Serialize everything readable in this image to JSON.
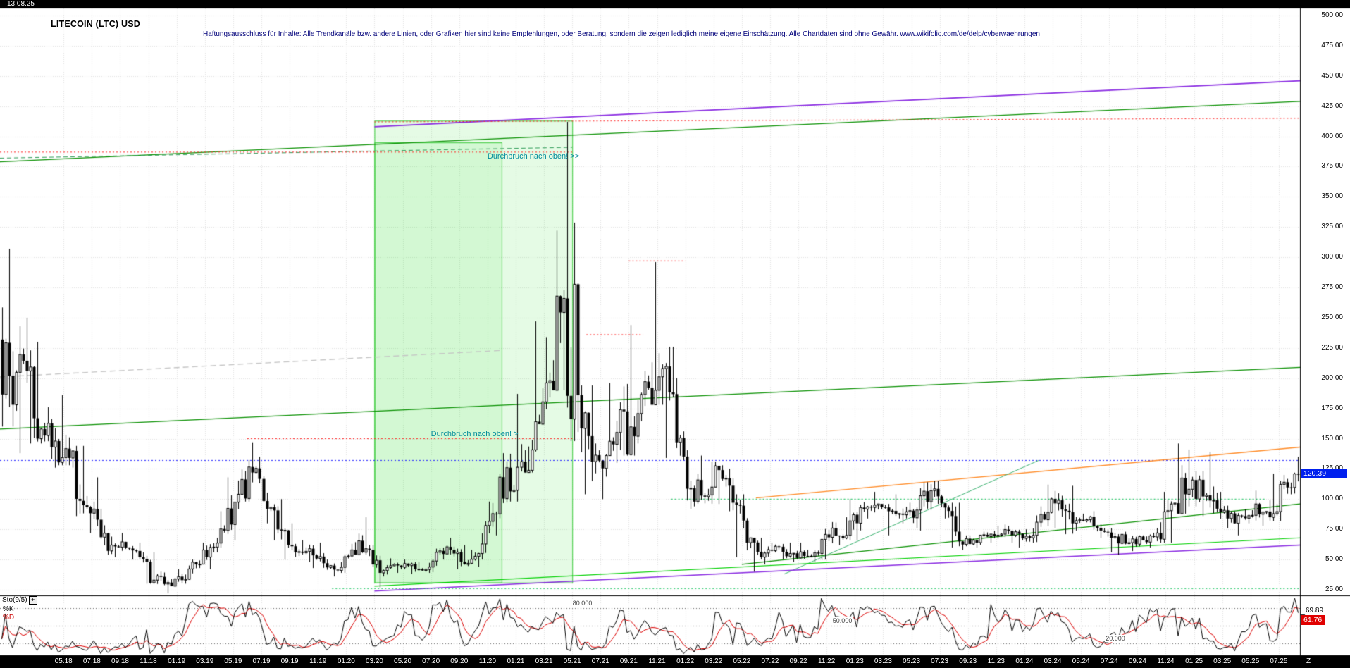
{
  "header": {
    "date": "13.08.25",
    "title": "LITECOIN (LTC) USD",
    "disclaimer": "Haftungsausschluss für Inhalte: Alle Trendkanäle bzw. andere Linien, oder Grafiken hier sind keine Empfehlungen, oder Beratung, sondern die zeigen lediglich meine eigene Einschätzung. Alle Chartdaten sind ohne Gewähr.  www.wikifolio.com/de/delp/cyberwaehrungen"
  },
  "price_axis": {
    "labels": [
      "500.00",
      "475.00",
      "450.00",
      "425.00",
      "400.00",
      "375.00",
      "350.00",
      "325.00",
      "300.00",
      "275.00",
      "250.00",
      "225.00",
      "200.00",
      "175.00",
      "150.00",
      "125.00",
      "100.00",
      "75.00",
      "50.00",
      "25.00"
    ],
    "current": {
      "value": "120.39",
      "price": 120.39,
      "color": "#0020ee"
    }
  },
  "time_axis": {
    "labels": [
      "05.18",
      "07.18",
      "09.18",
      "11.18",
      "01.19",
      "03.19",
      "05.19",
      "07.19",
      "09.19",
      "11.19",
      "01.20",
      "03.20",
      "05.20",
      "07.20",
      "09.20",
      "11.20",
      "01.21",
      "03.21",
      "05.21",
      "07.21",
      "09.21",
      "11.21",
      "01.22",
      "03.22",
      "05.22",
      "07.22",
      "09.22",
      "11.22",
      "01.23",
      "03.23",
      "05.23",
      "07.23",
      "09.23",
      "11.23",
      "01.24",
      "03.24",
      "05.24",
      "07.24",
      "09.24",
      "11.24",
      "01.25",
      "03.25",
      "05.25",
      "07.25"
    ],
    "suffix": "Z"
  },
  "oscillator": {
    "name": "Sto(9/5)",
    "expand_icon": "+",
    "k_label": "%K",
    "d_label": "%D",
    "k_value": "69.89",
    "d_value": "61.76",
    "k_color": "#000000",
    "d_color": "#dd0000",
    "levels": [
      {
        "value": 80,
        "label": "80.000",
        "xf": 0.44
      },
      {
        "value": 50,
        "label": "50.000",
        "xf": 0.64
      },
      {
        "value": 20,
        "label": "20.000",
        "xf": 0.85
      }
    ]
  },
  "chart_data": {
    "type": "candlestick",
    "title": "LITECOIN (LTC) USD",
    "x_unit": "month",
    "ylim": [
      25,
      500
    ],
    "y_tick_step": 25,
    "grid": true,
    "current_price": 120.39,
    "candles_monthly_ohlc": [
      [
        "2018-01",
        232,
        307,
        160,
        178
      ],
      [
        "2018-02",
        178,
        250,
        138,
        206
      ],
      [
        "2018-03",
        206,
        230,
        146,
        158
      ],
      [
        "2018-04",
        158,
        176,
        126,
        148
      ],
      [
        "2018-05",
        148,
        186,
        128,
        134
      ],
      [
        "2018-06",
        134,
        144,
        86,
        95
      ],
      [
        "2018-07",
        95,
        118,
        72,
        83
      ],
      [
        "2018-08",
        83,
        92,
        54,
        62
      ],
      [
        "2018-09",
        62,
        72,
        52,
        60
      ],
      [
        "2018-10",
        60,
        64,
        50,
        52
      ],
      [
        "2018-11",
        52,
        56,
        30,
        33
      ],
      [
        "2018-12",
        33,
        40,
        22,
        31
      ],
      [
        "2019-01",
        31,
        42,
        28,
        33
      ],
      [
        "2019-02",
        33,
        50,
        30,
        46
      ],
      [
        "2019-03",
        46,
        64,
        42,
        60
      ],
      [
        "2019-04",
        60,
        90,
        56,
        74
      ],
      [
        "2019-05",
        74,
        118,
        66,
        104
      ],
      [
        "2019-06",
        104,
        147,
        98,
        122
      ],
      [
        "2019-07",
        122,
        135,
        80,
        92
      ],
      [
        "2019-08",
        92,
        100,
        66,
        74
      ],
      [
        "2019-09",
        74,
        80,
        50,
        56
      ],
      [
        "2019-10",
        56,
        66,
        48,
        59
      ],
      [
        "2019-11",
        59,
        64,
        43,
        47
      ],
      [
        "2019-12",
        47,
        50,
        36,
        41
      ],
      [
        "2020-01",
        41,
        63,
        39,
        58
      ],
      [
        "2020-02",
        58,
        85,
        54,
        59
      ],
      [
        "2020-03",
        59,
        62,
        27,
        39
      ],
      [
        "2020-04",
        39,
        51,
        36,
        46
      ],
      [
        "2020-05",
        46,
        50,
        39,
        45
      ],
      [
        "2020-06",
        45,
        48,
        38,
        41
      ],
      [
        "2020-07",
        41,
        59,
        39,
        56
      ],
      [
        "2020-08",
        56,
        68,
        50,
        58
      ],
      [
        "2020-09",
        58,
        62,
        42,
        46
      ],
      [
        "2020-10",
        46,
        58,
        44,
        55
      ],
      [
        "2020-11",
        55,
        98,
        50,
        88
      ],
      [
        "2020-12",
        88,
        138,
        70,
        126
      ],
      [
        "2021-01",
        126,
        187,
        98,
        131
      ],
      [
        "2021-02",
        131,
        247,
        122,
        164
      ],
      [
        "2021-03",
        164,
        234,
        162,
        198
      ],
      [
        "2021-04",
        198,
        322,
        190,
        266
      ],
      [
        "2021-05",
        266,
        412,
        148,
        186
      ],
      [
        "2021-06",
        186,
        194,
        104,
        131
      ],
      [
        "2021-07",
        131,
        146,
        100,
        136
      ],
      [
        "2021-08",
        136,
        196,
        130,
        174
      ],
      [
        "2021-09",
        174,
        244,
        136,
        152
      ],
      [
        "2021-10",
        152,
        206,
        146,
        192
      ],
      [
        "2021-11",
        192,
        296,
        178,
        208
      ],
      [
        "2021-12",
        208,
        226,
        134,
        147
      ],
      [
        "2022-01",
        147,
        156,
        92,
        109
      ],
      [
        "2022-02",
        109,
        136,
        94,
        102
      ],
      [
        "2022-03",
        102,
        131,
        96,
        124
      ],
      [
        "2022-04",
        124,
        128,
        90,
        97
      ],
      [
        "2022-05",
        97,
        104,
        52,
        64
      ],
      [
        "2022-06",
        64,
        68,
        40,
        52
      ],
      [
        "2022-07",
        52,
        64,
        46,
        61
      ],
      [
        "2022-08",
        61,
        64,
        50,
        55
      ],
      [
        "2022-09",
        55,
        64,
        48,
        53
      ],
      [
        "2022-10",
        53,
        58,
        48,
        55
      ],
      [
        "2022-11",
        55,
        81,
        50,
        76
      ],
      [
        "2022-12",
        76,
        85,
        62,
        70
      ],
      [
        "2023-01",
        70,
        100,
        66,
        93
      ],
      [
        "2023-02",
        93,
        106,
        84,
        95
      ],
      [
        "2023-03",
        95,
        96,
        70,
        90
      ],
      [
        "2023-04",
        90,
        104,
        80,
        87
      ],
      [
        "2023-05",
        87,
        97,
        76,
        91
      ],
      [
        "2023-06",
        91,
        114,
        74,
        107
      ],
      [
        "2023-07",
        107,
        115,
        84,
        93
      ],
      [
        "2023-08",
        93,
        97,
        60,
        65
      ],
      [
        "2023-09",
        65,
        70,
        58,
        66
      ],
      [
        "2023-10",
        66,
        73,
        60,
        69
      ],
      [
        "2023-11",
        69,
        78,
        64,
        71
      ],
      [
        "2023-12",
        71,
        79,
        64,
        73
      ],
      [
        "2024-01",
        73,
        75,
        60,
        68
      ],
      [
        "2024-02",
        68,
        94,
        64,
        83
      ],
      [
        "2024-03",
        83,
        112,
        76,
        99
      ],
      [
        "2024-04",
        99,
        111,
        71,
        80
      ],
      [
        "2024-05",
        80,
        88,
        74,
        83
      ],
      [
        "2024-06",
        83,
        90,
        68,
        74
      ],
      [
        "2024-07",
        74,
        76,
        56,
        69
      ],
      [
        "2024-08",
        69,
        73,
        54,
        64
      ],
      [
        "2024-09",
        64,
        70,
        57,
        66
      ],
      [
        "2024-10",
        66,
        76,
        60,
        72
      ],
      [
        "2024-11",
        72,
        106,
        64,
        96
      ],
      [
        "2024-12",
        96,
        146,
        88,
        104
      ],
      [
        "2025-01",
        104,
        141,
        94,
        116
      ],
      [
        "2025-02",
        116,
        139,
        86,
        99
      ],
      [
        "2025-03",
        99,
        106,
        76,
        84
      ],
      [
        "2025-04",
        84,
        90,
        70,
        86
      ],
      [
        "2025-05",
        86,
        107,
        80,
        96
      ],
      [
        "2025-06",
        96,
        99,
        78,
        85
      ],
      [
        "2025-07",
        85,
        121,
        82,
        114
      ],
      [
        "2025-08",
        114,
        135,
        104,
        120.39
      ]
    ],
    "regions": [
      {
        "t1": "2020-03",
        "t2": "2021-05",
        "p1": 31,
        "p2": 413,
        "fill": "rgba(0,220,0,0.10)",
        "stroke": "#3ecc3e"
      },
      {
        "t1": "2020-03",
        "t2": "2020-12",
        "p1": 31,
        "p2": 395,
        "fill": "rgba(0,220,0,0.08)",
        "stroke": "#3ecc3e"
      }
    ],
    "trendlines": [
      {
        "id": "violet-channel-top",
        "t1": "2020-03",
        "p1": 408,
        "t2": "end",
        "p2": 446,
        "color": "#8a2be2",
        "width": 1.6
      },
      {
        "id": "green-channel-top",
        "t1": "start",
        "p1": 379,
        "t2": "end",
        "p2": 429,
        "color": "#089000",
        "width": 1.3
      },
      {
        "id": "red-dotted-resistance",
        "t1": "2020-03",
        "p1": 412,
        "t2": "end",
        "p2": 415,
        "color": "#ff2020",
        "width": 1,
        "dash": [
          2,
          3
        ]
      },
      {
        "id": "green-dashed-top-left",
        "t1": "start",
        "p1": 382,
        "t2": "2021-05",
        "p2": 391,
        "color": "#2e9b57",
        "width": 1,
        "dash": [
          6,
          4
        ]
      },
      {
        "id": "red-dotted-top-left",
        "t1": "start",
        "p1": 387,
        "t2": "2021-05",
        "p2": 387,
        "color": "#ff2020",
        "width": 1,
        "dash": [
          2,
          3
        ]
      },
      {
        "id": "gray-dashed-trend",
        "t1": "start",
        "p1": 201,
        "t2": "2020-12",
        "p2": 223,
        "color": "#c4c4c4",
        "width": 1.3,
        "dash": [
          8,
          5
        ]
      },
      {
        "id": "green-support-mid",
        "t1": "start",
        "p1": 158,
        "t2": "end",
        "p2": 209,
        "color": "#089000",
        "width": 1.3
      },
      {
        "id": "blue-dotted-level",
        "t1": "start",
        "p1": 132,
        "t2": "end",
        "p2": 132,
        "color": "#2222ff",
        "width": 1,
        "dash": [
          2,
          3
        ]
      },
      {
        "id": "red-dotted-150",
        "t1": "2019-06",
        "p1": 150,
        "t2": "2021-05",
        "p2": 150,
        "color": "#ff2020",
        "width": 1,
        "dash": [
          2,
          3
        ]
      },
      {
        "id": "red-dotted-297",
        "t1": "2021-09",
        "p1": 297,
        "t2": "2022-01",
        "p2": 297,
        "color": "#ff2020",
        "width": 1,
        "dash": [
          2,
          3
        ]
      },
      {
        "id": "red-dotted-236",
        "t1": "2021-06",
        "p1": 236,
        "t2": "2021-10",
        "p2": 236,
        "color": "#ff2020",
        "width": 1,
        "dash": [
          2,
          3
        ]
      },
      {
        "id": "orange-trend",
        "t1": "2022-06",
        "p1": 101,
        "t2": "end",
        "p2": 143,
        "color": "#ff8c28",
        "width": 1.4
      },
      {
        "id": "green-trend-lower",
        "t1": "2022-05",
        "p1": 46,
        "t2": "end",
        "p2": 96,
        "color": "#089000",
        "width": 1.2
      },
      {
        "id": "green-trend-steep",
        "t1": "2022-08",
        "p1": 38,
        "t2": "2024-02",
        "p2": 132,
        "color": "#3cb371",
        "width": 1
      },
      {
        "id": "violet-support-low",
        "t1": "2020-03",
        "p1": 24,
        "t2": "end",
        "p2": 62,
        "color": "#8a2be2",
        "width": 1.4
      },
      {
        "id": "green-support-low",
        "t1": "2020-03",
        "p1": 28,
        "t2": "end",
        "p2": 68,
        "color": "#00d000",
        "width": 1.1
      },
      {
        "id": "green-dotted-100",
        "t1": "2021-12",
        "p1": 100,
        "t2": "2025-06",
        "p2": 100,
        "color": "#00c050",
        "width": 1,
        "dash": [
          2,
          3
        ]
      },
      {
        "id": "green-dotted-26",
        "t1": "2019-12",
        "p1": 26,
        "t2": "end",
        "p2": 26,
        "color": "#00c050",
        "width": 1,
        "dash": [
          2,
          3
        ]
      }
    ],
    "annotations": [
      {
        "text": "Durchbruch nach oben! >>",
        "t": "2020-11",
        "p": 383,
        "color": "#008b9b"
      },
      {
        "text": "Durchbruch nach oben! >",
        "t": "2020-07",
        "p": 153,
        "color": "#008b9b"
      }
    ],
    "oscillator": {
      "type": "stochastic",
      "label": "Sto(9/5)",
      "k_period": 9,
      "d_period": 5,
      "ylim": [
        0,
        100
      ],
      "levels": [
        80,
        50,
        20
      ],
      "last_k": 69.89,
      "last_d": 61.76
    }
  }
}
